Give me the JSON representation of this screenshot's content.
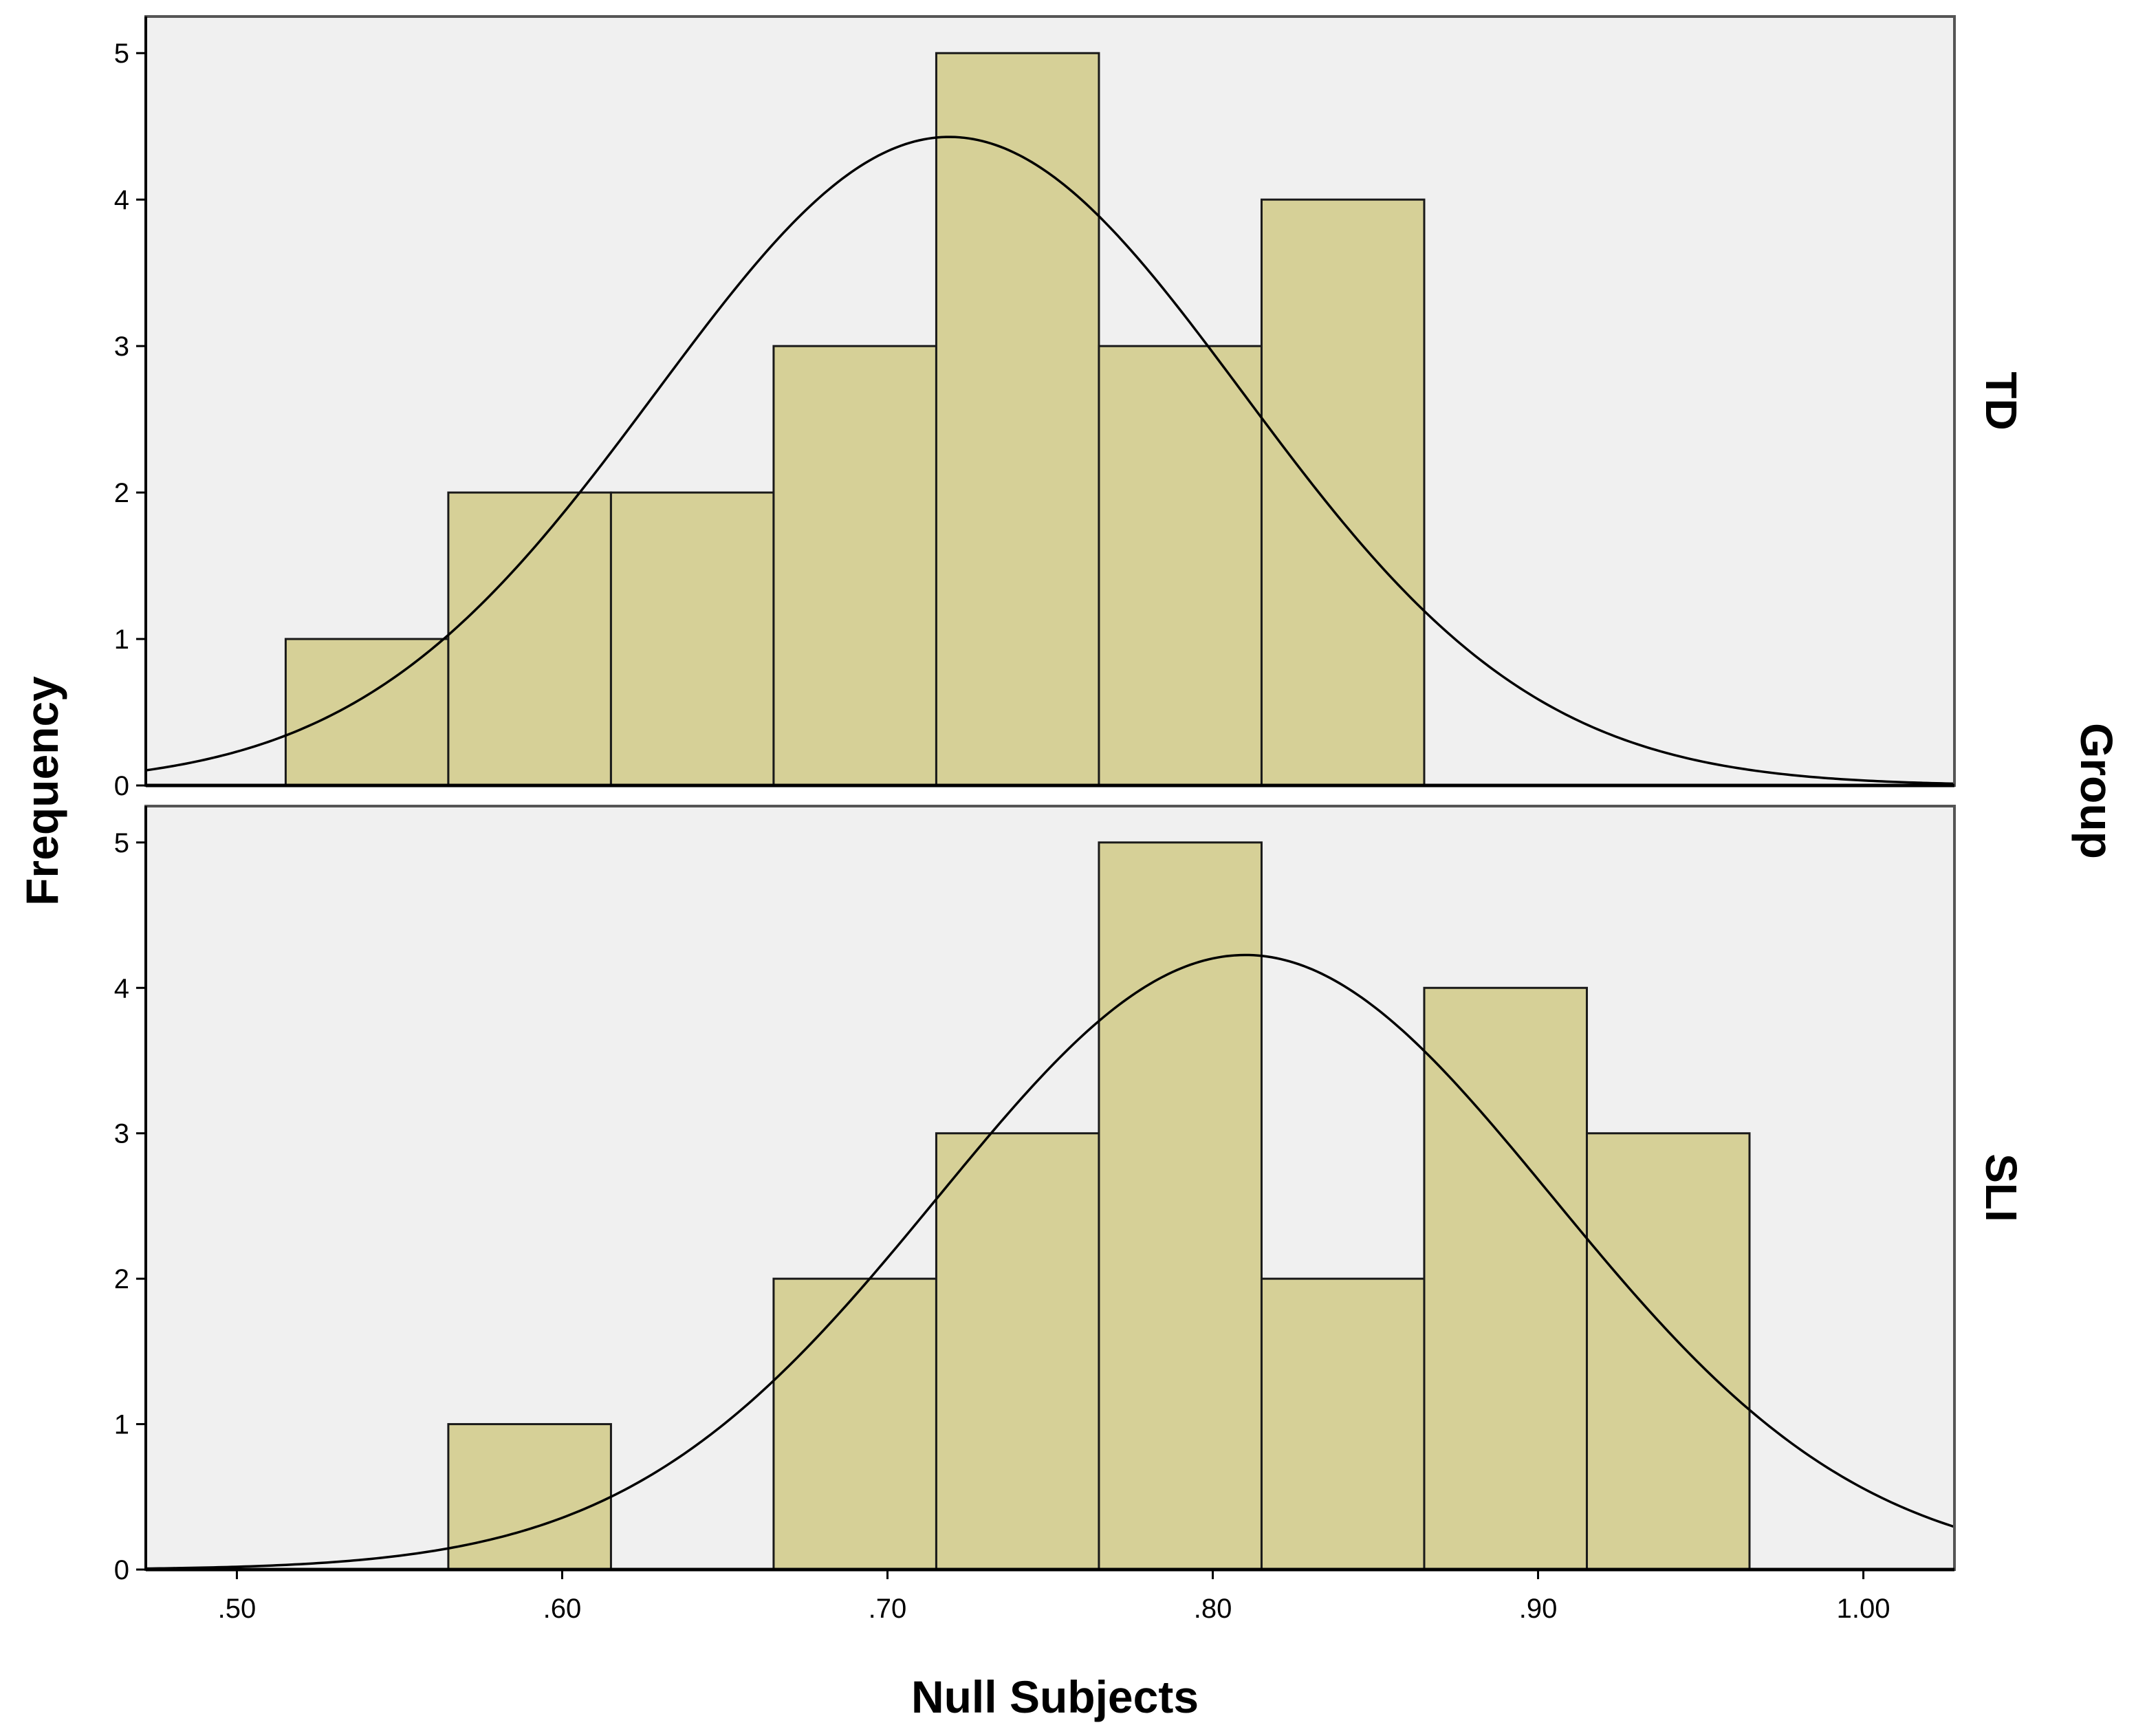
{
  "chart_data": {
    "type": "bar",
    "chart_kind": "paneled histogram with fitted normal curves",
    "xlabel": "Null Subjects",
    "ylabel": "Frequency",
    "panel_label_axis": "Group",
    "xlim": [
      0.472,
      1.028
    ],
    "x_ticks": [
      0.5,
      0.6,
      0.7,
      0.8,
      0.9,
      1.0
    ],
    "x_tick_labels": [
      ".50",
      ".60",
      ".70",
      ".80",
      ".90",
      "1.00"
    ],
    "ylim": [
      0,
      5.25
    ],
    "y_ticks": [
      0,
      1,
      2,
      3,
      4,
      5
    ],
    "y_tick_labels": [
      "0",
      "1",
      "2",
      "3",
      "4",
      "5"
    ],
    "bin_width": 0.05,
    "grid": false,
    "colors": {
      "bar_fill": "#d6d097",
      "bar_stroke": "#1a1a1a",
      "panel_background": "#f0f0f0",
      "curve": "#000000",
      "text": "#000000"
    },
    "panels": [
      {
        "group": "TD",
        "bins": [
          {
            "x_start": 0.515,
            "x_end": 0.565,
            "count": 1
          },
          {
            "x_start": 0.565,
            "x_end": 0.615,
            "count": 2
          },
          {
            "x_start": 0.615,
            "x_end": 0.665,
            "count": 2
          },
          {
            "x_start": 0.665,
            "x_end": 0.715,
            "count": 3
          },
          {
            "x_start": 0.715,
            "x_end": 0.765,
            "count": 5
          },
          {
            "x_start": 0.765,
            "x_end": 0.815,
            "count": 3
          },
          {
            "x_start": 0.815,
            "x_end": 0.865,
            "count": 4
          }
        ],
        "normal_curve": {
          "mean": 0.719,
          "sd": 0.0901,
          "n": 20
        }
      },
      {
        "group": "SLI",
        "bins": [
          {
            "x_start": 0.565,
            "x_end": 0.615,
            "count": 1
          },
          {
            "x_start": 0.665,
            "x_end": 0.715,
            "count": 2
          },
          {
            "x_start": 0.715,
            "x_end": 0.765,
            "count": 3
          },
          {
            "x_start": 0.765,
            "x_end": 0.815,
            "count": 5
          },
          {
            "x_start": 0.815,
            "x_end": 0.865,
            "count": 2
          },
          {
            "x_start": 0.865,
            "x_end": 0.915,
            "count": 4
          },
          {
            "x_start": 0.915,
            "x_end": 0.965,
            "count": 3
          }
        ],
        "normal_curve": {
          "mean": 0.81,
          "sd": 0.0944,
          "n": 20
        }
      }
    ]
  }
}
